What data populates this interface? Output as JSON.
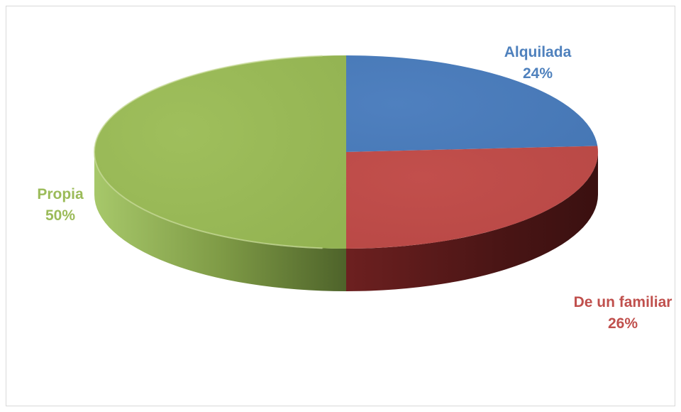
{
  "chart_data": {
    "type": "pie",
    "style": "3d",
    "slices": [
      {
        "label": "Alquilada",
        "percent_label": "24%",
        "value": 24,
        "color": "#4f81bd"
      },
      {
        "label": "De un familiar",
        "percent_label": "26%",
        "value": 26,
        "color": "#c0504d"
      },
      {
        "label": "Propia",
        "percent_label": "50%",
        "value": 50,
        "color": "#9bbb59"
      }
    ],
    "legend": "none",
    "labels": "outside"
  }
}
